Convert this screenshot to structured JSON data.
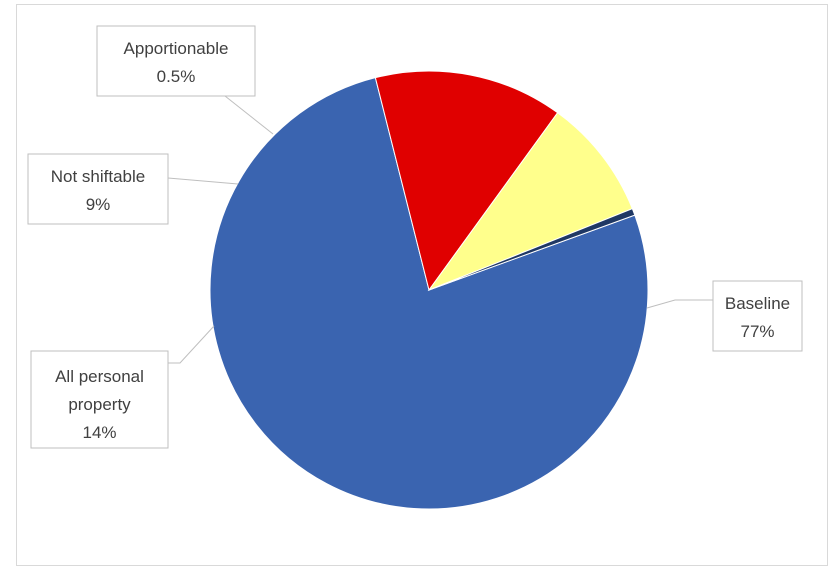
{
  "chart_data": {
    "type": "pie",
    "title": "",
    "start_angle_deg": -20,
    "slices": [
      {
        "key": "baseline",
        "label": "Baseline",
        "value": 77,
        "display": "77%",
        "color": "#3a64b0"
      },
      {
        "key": "personal",
        "label_lines": [
          "All personal",
          "property"
        ],
        "value": 14,
        "display": "14%",
        "color": "#e00000"
      },
      {
        "key": "notshift",
        "label": "Not shiftable",
        "value": 9,
        "display": "9%",
        "color": "#ffff8c"
      },
      {
        "key": "apport",
        "label": "Apportionable",
        "value": 0.5,
        "display": "0.5%",
        "color": "#1f3864"
      }
    ]
  }
}
